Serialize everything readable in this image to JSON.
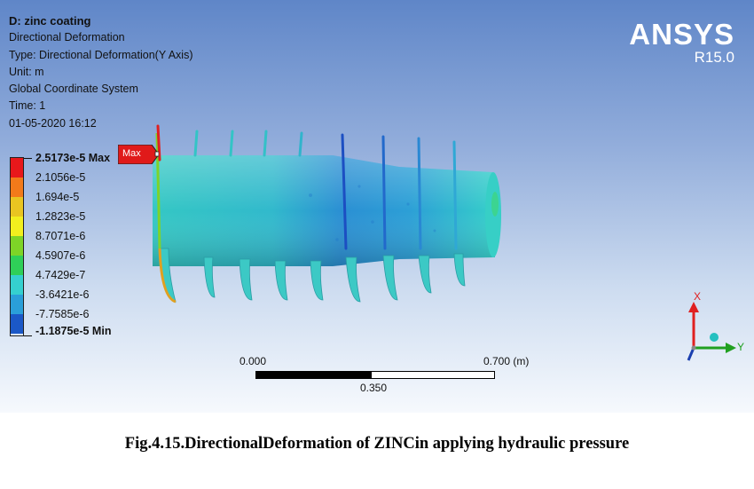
{
  "info": {
    "title": "D: zinc coating",
    "lines": [
      "Directional Deformation",
      "Type: Directional Deformation(Y Axis)",
      "Unit: m",
      "Global Coordinate System",
      "Time: 1",
      "01-05-2020 16:12"
    ]
  },
  "brand": {
    "name": "ANSYS",
    "version": "R15.0"
  },
  "legend": {
    "colors": [
      "#e8181b",
      "#f27a1a",
      "#e9c521",
      "#f2ef1e",
      "#7ed427",
      "#2fcf58",
      "#35d0cf",
      "#2a9fd9",
      "#1b58c7",
      "#ffffff"
    ],
    "labels": [
      "2.5173e-5 Max",
      "2.1056e-5",
      "1.694e-5",
      "1.2823e-5",
      "8.7071e-6",
      "4.5907e-6",
      "4.7429e-7",
      "-3.6421e-6",
      "-7.7585e-6",
      "-1.1875e-5 Min"
    ]
  },
  "max_flag": "Max",
  "triad": {
    "x_label": "X",
    "y_label": "Y"
  },
  "scale": {
    "start": "0.000",
    "end": "0.700 (m)",
    "mid": "0.350"
  },
  "caption": "Fig.4.15.DirectionalDeformation of ZINCin applying hydraulic pressure"
}
